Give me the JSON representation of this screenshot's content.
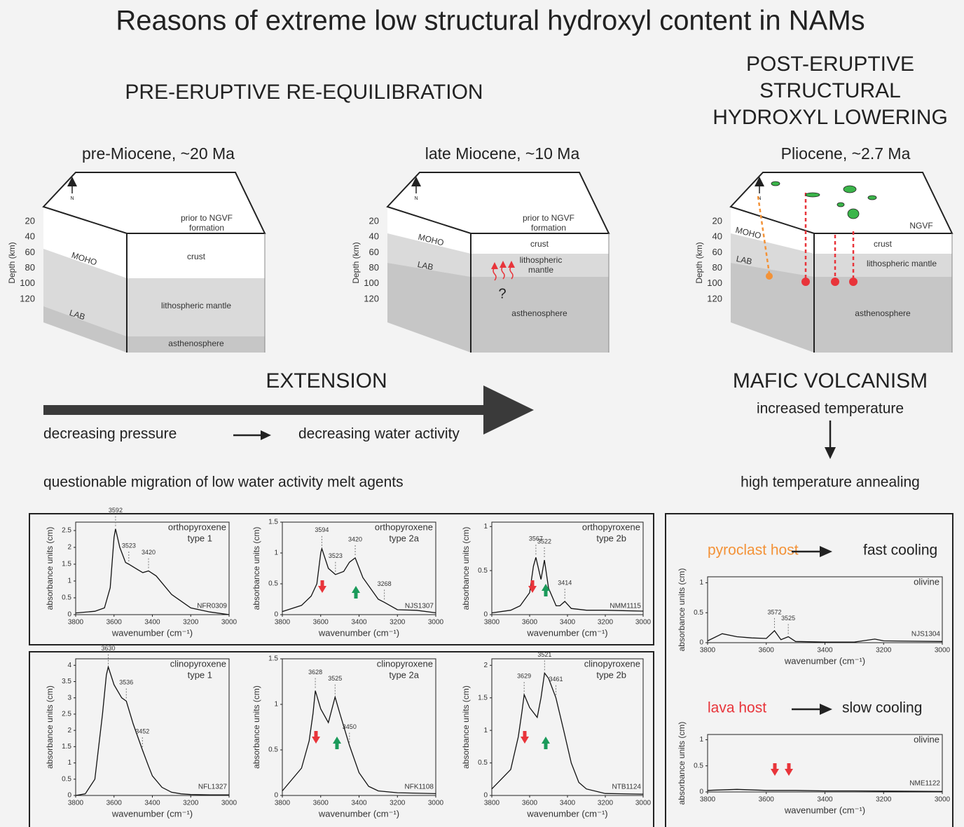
{
  "title": "Reasons of extreme low structural hydroxyl content in NAMs",
  "pre_heading": "PRE-ERUPTIVE RE-EQUILIBRATION",
  "post_heading": [
    "POST-ERUPTIVE",
    "STRUCTURAL",
    "HYDROXYL LOWERING"
  ],
  "depth_label": "Depth (km)",
  "depth_ticks": [
    20,
    40,
    60,
    80,
    100,
    120
  ],
  "north": "N",
  "blocks": [
    {
      "period": "pre-Miocene, ~20 Ma",
      "surface": [
        "prior to NGVF",
        "formation"
      ],
      "moho": "MOHO",
      "lab": "LAB",
      "crust": "crust",
      "mantle": [
        "lithospheric mantle"
      ],
      "asthenosphere": "asthenosphere"
    },
    {
      "period": "late Miocene, ~10 Ma",
      "surface": [
        "prior to NGVF",
        "formation"
      ],
      "moho": "MOHO",
      "lab": "LAB",
      "crust": "crust",
      "mantle": [
        "lithospheric",
        "mantle"
      ],
      "asthenosphere": "asthenosphere",
      "question": "?"
    },
    {
      "period": "Pliocene, ~2.7 Ma",
      "surface": [
        "NGVF"
      ],
      "moho": "MOHO",
      "lab": "LAB",
      "crust": "crust",
      "mantle": [
        "lithospheric mantle"
      ],
      "asthenosphere": "asthenosphere"
    }
  ],
  "extension": "EXTENSION",
  "pressure": "decreasing pressure",
  "water": "decreasing water activity",
  "migration": "questionable migration of low water activity melt agents",
  "volcanism": "MAFIC VOLCANISM",
  "temperature": "increased temperature",
  "annealing": "high temperature annealing",
  "ylabel": "absorbance units (cm)",
  "xlabel": "wavenumber (cm⁻¹)",
  "spectra": [
    {
      "mineral": "orthopyroxene",
      "type": "type 1",
      "sample": "NFR0309",
      "xlim": [
        3800,
        3000
      ],
      "xticks": [
        3800,
        3600,
        3400,
        3200,
        3000
      ],
      "ylim": [
        0,
        2.75
      ],
      "yticks": [
        0,
        0.5,
        1,
        1.5,
        2,
        2.5
      ],
      "peaks": [
        3592,
        3523,
        3420
      ],
      "x": [
        3800,
        3700,
        3650,
        3620,
        3600,
        3592,
        3570,
        3540,
        3523,
        3480,
        3450,
        3420,
        3380,
        3300,
        3200,
        3100,
        3000
      ],
      "y": [
        0.05,
        0.1,
        0.2,
        0.8,
        2.3,
        2.55,
        2.0,
        1.55,
        1.5,
        1.35,
        1.25,
        1.3,
        1.15,
        0.6,
        0.2,
        0.08,
        0
      ]
    },
    {
      "mineral": "orthopyroxene",
      "type": "type 2a",
      "sample": "NJS1307",
      "xlim": [
        3800,
        3000
      ],
      "xticks": [
        3800,
        3600,
        3400,
        3200,
        3000
      ],
      "ylim": [
        0,
        1.5
      ],
      "yticks": [
        0,
        0.5,
        1,
        1.5
      ],
      "peaks": [
        3594,
        3523,
        3420,
        3268
      ],
      "x": [
        3800,
        3700,
        3650,
        3620,
        3600,
        3594,
        3560,
        3523,
        3480,
        3450,
        3420,
        3380,
        3300,
        3268,
        3200,
        3100,
        3000
      ],
      "y": [
        0.05,
        0.15,
        0.3,
        0.5,
        1.0,
        1.07,
        0.75,
        0.65,
        0.7,
        0.85,
        0.92,
        0.6,
        0.25,
        0.2,
        0.08,
        0.07,
        0.03
      ]
    },
    {
      "mineral": "orthopyroxene",
      "type": "type 2b",
      "sample": "NMM1115",
      "xlim": [
        3800,
        3000
      ],
      "xticks": [
        3800,
        3600,
        3400,
        3200,
        3000
      ],
      "ylim": [
        0,
        1.05
      ],
      "yticks": [
        0,
        0.5,
        1
      ],
      "peaks": [
        3567,
        3522,
        3414
      ],
      "x": [
        3800,
        3700,
        3650,
        3600,
        3580,
        3567,
        3540,
        3522,
        3500,
        3460,
        3440,
        3414,
        3380,
        3300,
        3200,
        3000
      ],
      "y": [
        0.02,
        0.05,
        0.1,
        0.25,
        0.55,
        0.65,
        0.4,
        0.62,
        0.3,
        0.1,
        0.1,
        0.15,
        0.07,
        0.05,
        0.05,
        0.04
      ]
    },
    {
      "mineral": "clinopyroxene",
      "type": "type 1",
      "sample": "NFL1327",
      "xlim": [
        3800,
        3000
      ],
      "xticks": [
        3800,
        3600,
        3400,
        3200,
        3000
      ],
      "ylim": [
        0,
        4.2
      ],
      "yticks": [
        0,
        0.5,
        1,
        1.5,
        2,
        2.5,
        3,
        3.5,
        4
      ],
      "peaks": [
        3630,
        3536,
        3452
      ],
      "x": [
        3800,
        3750,
        3700,
        3660,
        3640,
        3630,
        3600,
        3560,
        3536,
        3500,
        3452,
        3420,
        3400,
        3350,
        3300,
        3250,
        3200,
        3100,
        3000
      ],
      "y": [
        0,
        0.05,
        0.5,
        2.5,
        3.7,
        3.95,
        3.4,
        3.0,
        2.9,
        2.2,
        1.4,
        0.9,
        0.6,
        0.25,
        0.1,
        0.05,
        0.03,
        0.02,
        0.02
      ]
    },
    {
      "mineral": "clinopyroxene",
      "type": "type 2a",
      "sample": "NFK1108",
      "xlim": [
        3800,
        3000
      ],
      "xticks": [
        3800,
        3600,
        3400,
        3200,
        3000
      ],
      "ylim": [
        0,
        1.5
      ],
      "yticks": [
        0,
        0.5,
        1,
        1.5
      ],
      "peaks": [
        3628,
        3525,
        3450
      ],
      "x": [
        3800,
        3700,
        3660,
        3640,
        3628,
        3600,
        3560,
        3525,
        3500,
        3450,
        3400,
        3350,
        3300,
        3200,
        3000
      ],
      "y": [
        0.05,
        0.3,
        0.6,
        0.9,
        1.15,
        0.95,
        0.8,
        1.08,
        0.9,
        0.55,
        0.25,
        0.1,
        0.05,
        0.03,
        0.02
      ]
    },
    {
      "mineral": "clinopyroxene",
      "type": "type 2b",
      "sample": "NTB1124",
      "xlim": [
        3800,
        3000
      ],
      "xticks": [
        3800,
        3600,
        3400,
        3200,
        3000
      ],
      "ylim": [
        0,
        2.1
      ],
      "yticks": [
        0,
        0.5,
        1,
        1.5,
        2
      ],
      "peaks": [
        3629,
        3521,
        3461
      ],
      "x": [
        3800,
        3700,
        3660,
        3640,
        3629,
        3600,
        3560,
        3540,
        3521,
        3500,
        3461,
        3420,
        3380,
        3340,
        3300,
        3200,
        3000
      ],
      "y": [
        0.1,
        0.4,
        0.9,
        1.3,
        1.55,
        1.35,
        1.2,
        1.5,
        1.88,
        1.8,
        1.5,
        1.0,
        0.5,
        0.2,
        0.1,
        0.03,
        0.02
      ]
    }
  ],
  "olivine": [
    {
      "host": "pyroclast host",
      "host_color": "#f39237",
      "cooling": "fast cooling",
      "mineral": "olivine",
      "sample": "NJS1304",
      "xlim": [
        3800,
        3000
      ],
      "xticks": [
        3800,
        3600,
        3400,
        3200,
        3000
      ],
      "ylim": [
        0,
        1.1
      ],
      "yticks": [
        0,
        0.5,
        1
      ],
      "peaks": [
        3572,
        3525
      ],
      "x": [
        3800,
        3750,
        3700,
        3650,
        3600,
        3572,
        3550,
        3525,
        3500,
        3400,
        3300,
        3230,
        3200,
        3000
      ],
      "y": [
        0.03,
        0.15,
        0.1,
        0.08,
        0.07,
        0.2,
        0.05,
        0.1,
        0.02,
        0.01,
        0.01,
        0.06,
        0.03,
        0.02
      ]
    },
    {
      "host": "lava host",
      "host_color": "#e8343a",
      "cooling": "slow cooling",
      "mineral": "olivine",
      "sample": "NME1122",
      "xlim": [
        3800,
        3000
      ],
      "xticks": [
        3800,
        3600,
        3400,
        3200,
        3000
      ],
      "ylim": [
        0,
        1.1
      ],
      "yticks": [
        0,
        0.5,
        1
      ],
      "peaks": [],
      "x": [
        3800,
        3700,
        3600,
        3500,
        3400,
        3300,
        3000
      ],
      "y": [
        0.03,
        0.05,
        0.03,
        0.03,
        0.02,
        0.02,
        0.01
      ]
    }
  ]
}
